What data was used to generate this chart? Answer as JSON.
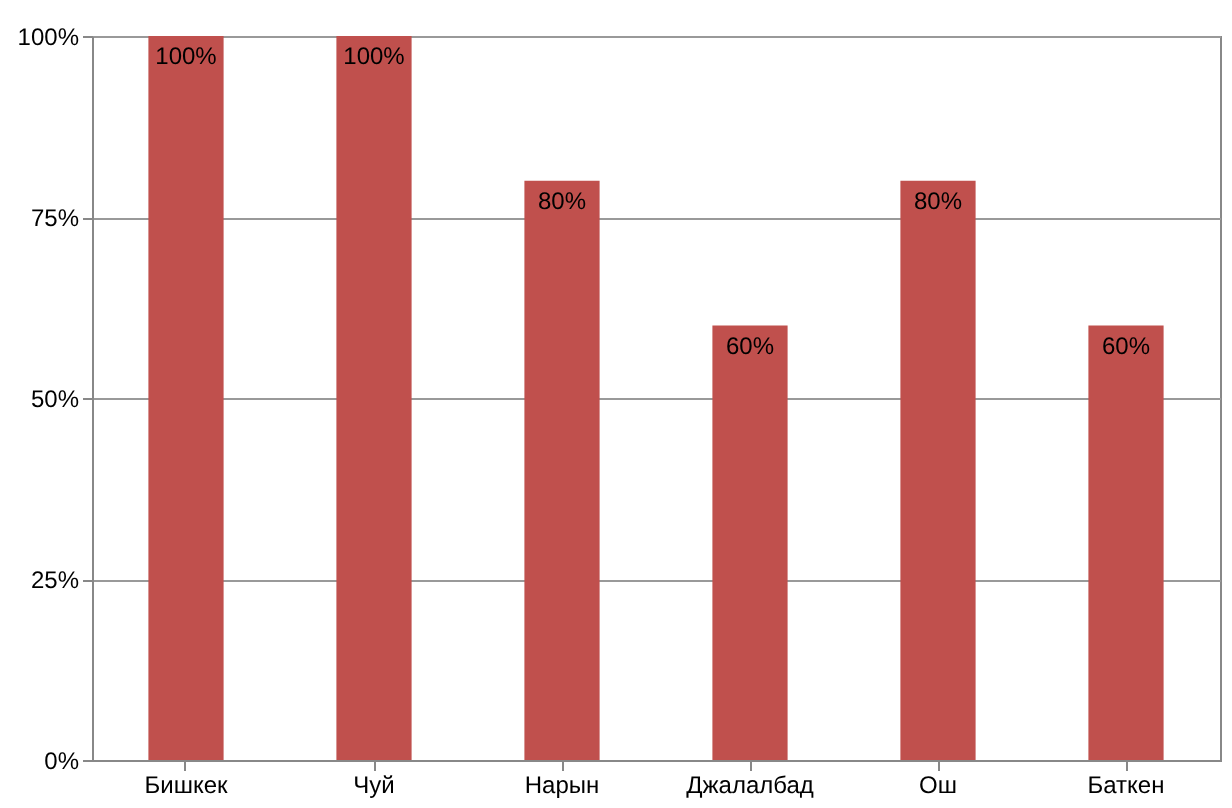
{
  "chart_data": {
    "type": "bar",
    "categories": [
      "Бишкек",
      "Чуй",
      "Нарын",
      "Джалалбад",
      "Ош",
      "Баткен"
    ],
    "values": [
      100,
      100,
      80,
      60,
      80,
      60
    ],
    "value_labels": [
      "100%",
      "100%",
      "80%",
      "60%",
      "80%",
      "60%"
    ],
    "color": "#c0504d",
    "ylim": [
      0,
      100
    ],
    "yticks": [
      {
        "value": 0,
        "label": "0%"
      },
      {
        "value": 25,
        "label": "25%"
      },
      {
        "value": 50,
        "label": "50%"
      },
      {
        "value": 75,
        "label": "75%"
      },
      {
        "value": 100,
        "label": "100%"
      }
    ],
    "grid": "y"
  }
}
